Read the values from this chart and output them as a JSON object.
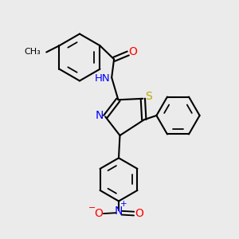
{
  "background_color": "#ebebeb",
  "bond_color": "#000000",
  "atom_colors": {
    "N": "#0000ff",
    "O": "#ff0000",
    "S": "#bbaa00",
    "H": "#008888",
    "C": "#000000"
  },
  "figsize": [
    3.0,
    3.0
  ],
  "dpi": 100
}
